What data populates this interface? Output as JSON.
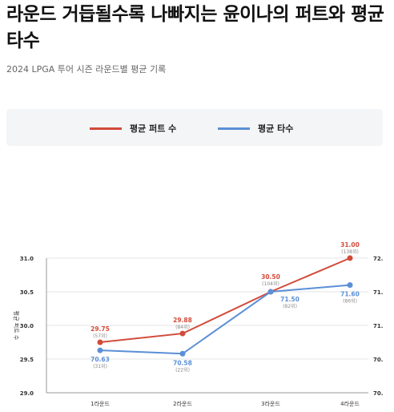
{
  "header": {
    "title": "라운드 거듭될수록 나빠지는 윤이나의 퍼트와 평균타수",
    "subtitle": "2024 LPGA 투어 시즌 라운드별 평균 기록"
  },
  "colors": {
    "putts": "#d24b3a",
    "score": "#5b8fd6",
    "grid": "#e6e6e6",
    "axis": "#999999"
  },
  "chart_data": {
    "type": "line",
    "categories": [
      "1라운드",
      "2라운드",
      "3라운드",
      "4라운드"
    ],
    "ylabel": "평균 퍼트 수",
    "y_left": {
      "ylim": [
        29.0,
        31.0
      ],
      "ticks": [
        "29.0",
        "29.5",
        "30.0",
        "30.5",
        "31.0"
      ]
    },
    "y_right": {
      "ylim": [
        70.0,
        72.0
      ],
      "ticks": [
        "70.",
        "70.",
        "71.",
        "71.",
        "72."
      ]
    },
    "series": [
      {
        "name": "평균 퍼트 수",
        "axis": "left",
        "values": [
          29.75,
          29.88,
          30.5,
          31.0
        ],
        "labels": [
          "29.75",
          "29.88",
          "30.50",
          "31.00"
        ],
        "ranks": [
          "(57위)",
          "(84위)",
          "(104위)",
          "(138위)"
        ]
      },
      {
        "name": "평균 타수",
        "axis": "right",
        "values": [
          70.63,
          70.58,
          71.5,
          71.6
        ],
        "labels": [
          "70.63",
          "70.58",
          "71.50",
          "71.60"
        ],
        "ranks": [
          "(31위)",
          "(22위)",
          "(82위)",
          "(86위)"
        ]
      }
    ]
  }
}
